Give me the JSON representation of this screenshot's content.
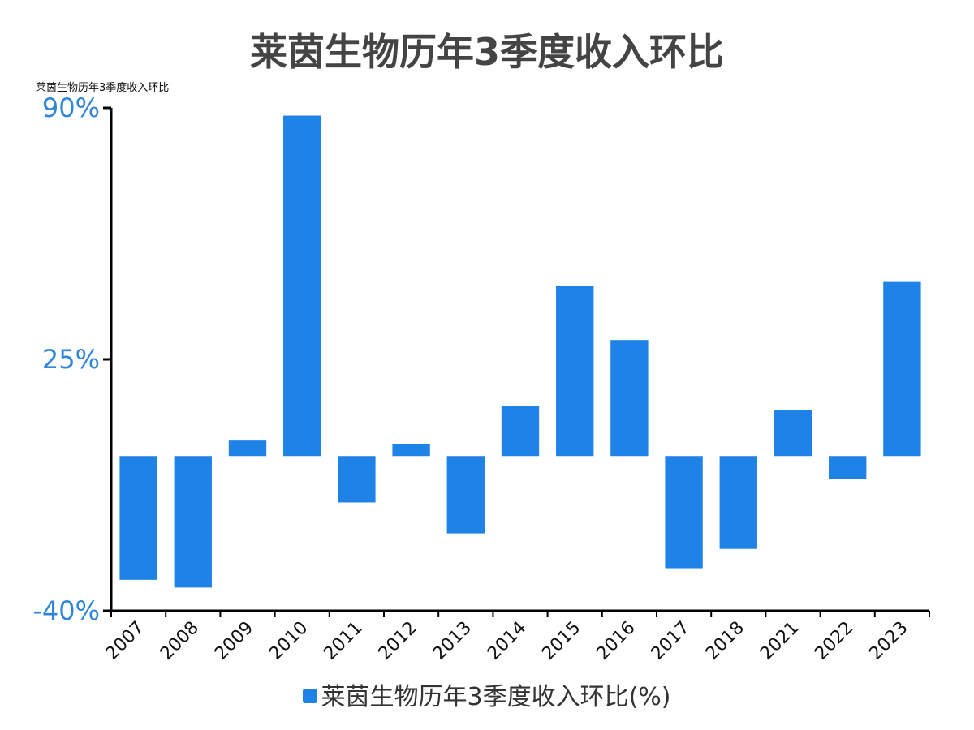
{
  "chart_data": {
    "type": "bar",
    "title": "莱茵生物历年3季度收入环比",
    "ylabel": "莱茵生物历年3季度收入环比",
    "categories": [
      "2007",
      "2008",
      "2009",
      "2010",
      "2011",
      "2012",
      "2013",
      "2014",
      "2015",
      "2016",
      "2017",
      "2018",
      "2021",
      "2022",
      "2023"
    ],
    "series": [
      {
        "name": "莱茵生物历年3季度收入环比(%)",
        "values": [
          -32,
          -34,
          4,
          88,
          -12,
          3,
          -20,
          13,
          44,
          30,
          -29,
          -24,
          12,
          -6,
          45
        ]
      }
    ],
    "yticks": [
      "90%",
      "25%",
      "-40%"
    ],
    "ylim": [
      -40,
      90
    ],
    "legend_position": "bottom",
    "colors": {
      "bar": "#1f82e6",
      "tick_label": "#2f86d8"
    }
  }
}
